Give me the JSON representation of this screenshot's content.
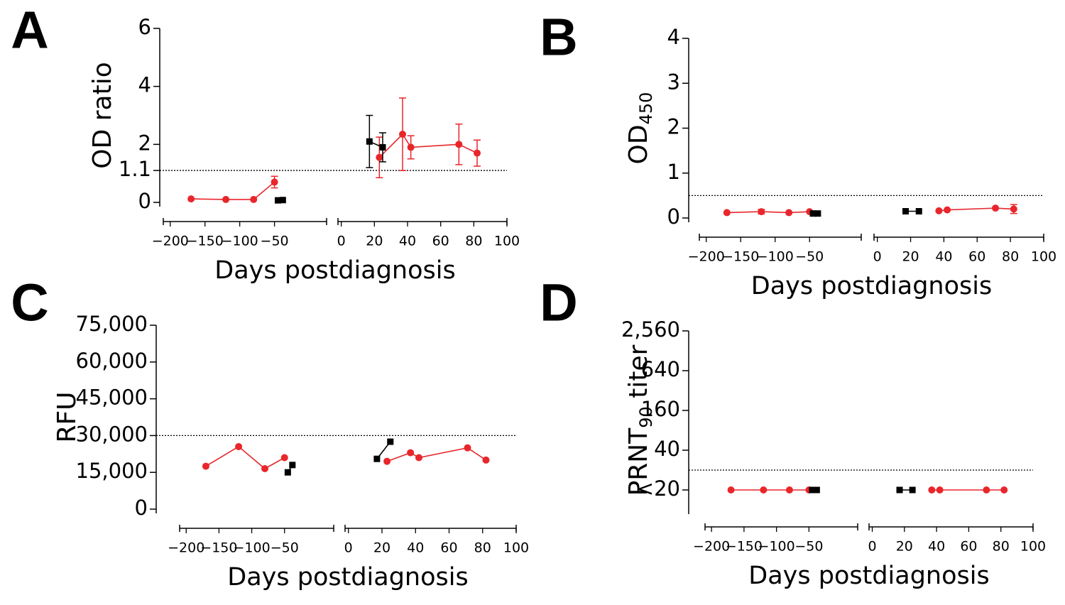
{
  "chart_data": [
    {
      "type": "line",
      "label": "A",
      "ylabel": [
        {
          "text": "OD ratio"
        }
      ],
      "xlabel": "Days postdiagnosis",
      "ylim": [
        0,
        6
      ],
      "yticks": [
        0,
        1.1,
        2,
        4,
        6
      ],
      "threshold": 1.1,
      "xaxes": [
        {
          "xlim": [
            -210,
            25
          ],
          "xticks": [
            {
              "value": -200,
              "label": "−200"
            },
            {
              "value": -150,
              "label": "−150"
            },
            {
              "value": -100,
              "label": "−100"
            },
            {
              "value": -50,
              "label": "−50"
            }
          ]
        },
        {
          "xlim": [
            -2,
            100
          ],
          "xticks": [
            0,
            20,
            40,
            60,
            80,
            100
          ]
        }
      ],
      "series": [
        {
          "color": "#e8262b",
          "marker": "circle",
          "x": [
            -170,
            -120,
            -80,
            -50,
            23,
            37,
            42,
            71,
            82
          ],
          "values": [
            0.12,
            0.1,
            0.1,
            0.7,
            1.55,
            2.35,
            1.9,
            2.0,
            1.7
          ],
          "errors": [
            null,
            null,
            null,
            0.2,
            0.7,
            1.25,
            0.4,
            0.7,
            0.45
          ]
        },
        {
          "color": "#000000",
          "marker": "square",
          "x": [
            -45,
            -38,
            17,
            25
          ],
          "values": [
            0.07,
            0.08,
            2.1,
            1.9
          ],
          "errors": [
            null,
            null,
            0.9,
            0.5
          ]
        }
      ]
    },
    {
      "type": "line",
      "label": "B",
      "ylabel": [
        {
          "text": "OD"
        },
        {
          "sub": "450"
        }
      ],
      "xlabel": "Days postdiagnosis",
      "ylim": [
        0,
        4
      ],
      "yticks": [
        0,
        1,
        2,
        3,
        4
      ],
      "threshold": 0.5,
      "xaxes": [
        {
          "xlim": [
            -210,
            25
          ],
          "xticks": [
            {
              "value": -200,
              "label": "−200"
            },
            {
              "value": -150,
              "label": "−150"
            },
            {
              "value": -100,
              "label": "−100"
            },
            {
              "value": -50,
              "label": "−50"
            }
          ]
        },
        {
          "xlim": [
            -2,
            100
          ],
          "xticks": [
            0,
            20,
            40,
            60,
            80,
            100
          ]
        }
      ],
      "series": [
        {
          "color": "#e8262b",
          "marker": "circle",
          "x": [
            -170,
            -120,
            -80,
            -50,
            37,
            42,
            71,
            82
          ],
          "values": [
            0.12,
            0.14,
            0.12,
            0.14,
            0.16,
            0.18,
            0.22,
            0.2
          ],
          "errors": [
            null,
            0.05,
            null,
            null,
            null,
            null,
            null,
            0.1
          ]
        },
        {
          "color": "#000000",
          "marker": "square",
          "x": [
            -45,
            -38,
            17,
            25
          ],
          "values": [
            0.1,
            0.1,
            0.15,
            0.15
          ],
          "errors": [
            null,
            null,
            null,
            null
          ]
        }
      ]
    },
    {
      "type": "line",
      "label": "C",
      "ylabel": [
        {
          "text": "RFU"
        }
      ],
      "xlabel": "Days postdiagnosis",
      "ylim": [
        0,
        75000
      ],
      "yticks": [
        0,
        {
          "value": 15000,
          "label": "15,000"
        },
        {
          "value": 30000,
          "label": "30,000"
        },
        {
          "value": 45000,
          "label": "45,000"
        },
        {
          "value": 60000,
          "label": "60,000"
        },
        {
          "value": 75000,
          "label": "75,000"
        }
      ],
      "threshold": 30000,
      "xaxes": [
        {
          "xlim": [
            -210,
            25
          ],
          "xticks": [
            {
              "value": -200,
              "label": "−200"
            },
            {
              "value": -150,
              "label": "−150"
            },
            {
              "value": -100,
              "label": "−100"
            },
            {
              "value": -50,
              "label": "−50"
            }
          ]
        },
        {
          "xlim": [
            -2,
            100
          ],
          "xticks": [
            0,
            20,
            40,
            60,
            80,
            100
          ]
        }
      ],
      "series": [
        {
          "color": "#e8262b",
          "marker": "circle",
          "x": [
            -170,
            -120,
            -80,
            -50,
            23,
            37,
            42,
            71,
            82
          ],
          "values": [
            17500,
            25500,
            16500,
            21000,
            19500,
            23000,
            21000,
            25000,
            20000
          ]
        },
        {
          "color": "#000000",
          "marker": "square",
          "x": [
            -45,
            -38,
            17,
            25
          ],
          "values": [
            15000,
            18000,
            20500,
            27500
          ]
        }
      ]
    },
    {
      "type": "line",
      "label": "D",
      "ylabel": [
        {
          "text": "PRNT"
        },
        {
          "sub": "90"
        },
        {
          "text": " titer"
        }
      ],
      "xlabel": "Days postdiagnosis",
      "log": true,
      "ylim": [
        5,
        2560
      ],
      "yticks": [
        {
          "value": 10,
          "label": "<20"
        },
        40,
        160,
        640,
        {
          "value": 2560,
          "label": "2,560"
        }
      ],
      "threshold": 20,
      "xaxes": [
        {
          "xlim": [
            -210,
            25
          ],
          "xticks": [
            {
              "value": -200,
              "label": "−200"
            },
            {
              "value": -150,
              "label": "−150"
            },
            {
              "value": -100,
              "label": "−100"
            },
            {
              "value": -50,
              "label": "−50"
            }
          ]
        },
        {
          "xlim": [
            -2,
            100
          ],
          "xticks": [
            0,
            20,
            40,
            60,
            80,
            100
          ]
        }
      ],
      "series": [
        {
          "color": "#e8262b",
          "marker": "circle",
          "x": [
            -170,
            -120,
            -80,
            -50,
            37,
            42,
            71,
            82
          ],
          "values": [
            10,
            10,
            10,
            10,
            10,
            10,
            10,
            10
          ]
        },
        {
          "color": "#000000",
          "marker": "square",
          "x": [
            -45,
            -38,
            17,
            25
          ],
          "values": [
            10,
            10,
            10,
            10
          ]
        }
      ]
    }
  ]
}
